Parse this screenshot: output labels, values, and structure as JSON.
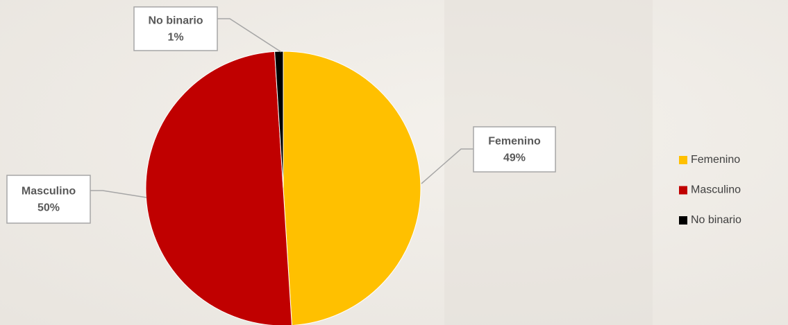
{
  "chart_data": {
    "type": "pie",
    "categories": [
      "Femenino",
      "Masculino",
      "No binario"
    ],
    "values": [
      49,
      50,
      1
    ],
    "value_labels": [
      "49%",
      "50%",
      "1%"
    ],
    "colors": [
      "#ffc000",
      "#c00000",
      "#000000"
    ],
    "legend": "right"
  }
}
